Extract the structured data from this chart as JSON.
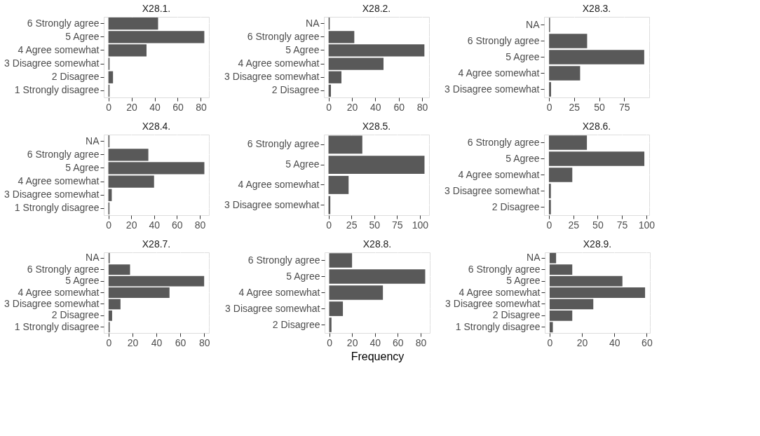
{
  "chart_data": [
    {
      "type": "bar",
      "orientation": "horizontal",
      "title": "X28.1.",
      "categories": [
        "6 Strongly agree",
        "5 Agree",
        "4 Agree somewhat",
        "3 Disagree somewhat",
        "2 Disagree",
        "1 Strongly disagree"
      ],
      "values": [
        43,
        83,
        33,
        1,
        4,
        1
      ],
      "color": "#595959",
      "xlim": [
        -4,
        87
      ],
      "xticks": [
        0,
        20,
        40,
        60,
        80
      ],
      "grid": true
    },
    {
      "type": "bar",
      "orientation": "horizontal",
      "title": "X28.2.",
      "categories": [
        "NA",
        "6 Strongly agree",
        "5 Agree",
        "4 Agree somewhat",
        "3 Disagree somewhat",
        "2 Disagree"
      ],
      "values": [
        1,
        22,
        82,
        47,
        11,
        2
      ],
      "color": "#595959",
      "xlim": [
        -4,
        86
      ],
      "xticks": [
        0,
        20,
        40,
        60,
        80
      ],
      "grid": true
    },
    {
      "type": "bar",
      "orientation": "horizontal",
      "title": "X28.3.",
      "categories": [
        "NA",
        "6 Strongly agree",
        "5 Agree",
        "4 Agree somewhat",
        "3 Disagree somewhat"
      ],
      "values": [
        1,
        38,
        95,
        31,
        2
      ],
      "color": "#595959",
      "xlim": [
        -5,
        100
      ],
      "xticks": [
        0,
        25,
        50,
        75
      ],
      "grid": true
    },
    {
      "type": "bar",
      "orientation": "horizontal",
      "title": "X28.4.",
      "categories": [
        "NA",
        "6 Strongly agree",
        "5 Agree",
        "4 Agree somewhat",
        "3 Disagree somewhat",
        "1 Strongly disagree"
      ],
      "values": [
        1,
        35,
        84,
        40,
        3,
        1
      ],
      "color": "#595959",
      "xlim": [
        -4,
        88
      ],
      "xticks": [
        0,
        20,
        40,
        60,
        80
      ],
      "grid": true
    },
    {
      "type": "bar",
      "orientation": "horizontal",
      "title": "X28.5.",
      "categories": [
        "6 Strongly agree",
        "5 Agree",
        "4 Agree somewhat",
        "3 Disagree somewhat"
      ],
      "values": [
        37,
        105,
        22,
        2
      ],
      "color": "#595959",
      "xlim": [
        -5,
        110
      ],
      "xticks": [
        0,
        25,
        50,
        75,
        100
      ],
      "grid": true
    },
    {
      "type": "bar",
      "orientation": "horizontal",
      "title": "X28.6.",
      "categories": [
        "6 Strongly agree",
        "5 Agree",
        "4 Agree somewhat",
        "3 Disagree somewhat",
        "2 Disagree"
      ],
      "values": [
        39,
        98,
        24,
        2,
        2
      ],
      "color": "#595959",
      "xlim": [
        -5,
        103
      ],
      "xticks": [
        0,
        25,
        50,
        75,
        100
      ],
      "grid": true
    },
    {
      "type": "bar",
      "orientation": "horizontal",
      "title": "X28.7.",
      "categories": [
        "NA",
        "6 Strongly agree",
        "5 Agree",
        "4 Agree somewhat",
        "3 Disagree somewhat",
        "2 Disagree",
        "1 Strongly disagree"
      ],
      "values": [
        1,
        18,
        80,
        51,
        10,
        3,
        1
      ],
      "color": "#595959",
      "xlim": [
        -4,
        84
      ],
      "xticks": [
        0,
        20,
        40,
        60,
        80
      ],
      "grid": true
    },
    {
      "type": "bar",
      "orientation": "horizontal",
      "title": "X28.8.",
      "xlabel": "Frequency",
      "categories": [
        "6 Strongly agree",
        "5 Agree",
        "4 Agree somewhat",
        "3 Disagree somewhat",
        "2 Disagree"
      ],
      "values": [
        20,
        84,
        47,
        12,
        2
      ],
      "color": "#595959",
      "xlim": [
        -4,
        88
      ],
      "xticks": [
        0,
        20,
        40,
        60,
        80
      ],
      "grid": true
    },
    {
      "type": "bar",
      "orientation": "horizontal",
      "title": "X28.9.",
      "categories": [
        "NA",
        "6 Strongly agree",
        "5 Agree",
        "4 Agree somewhat",
        "3 Disagree somewhat",
        "2 Disagree",
        "1 Strongly disagree"
      ],
      "values": [
        4,
        14,
        45,
        59,
        27,
        14,
        2
      ],
      "color": "#595959",
      "xlim": [
        -3,
        62
      ],
      "xticks": [
        0,
        20,
        40,
        60
      ],
      "grid": true
    }
  ]
}
